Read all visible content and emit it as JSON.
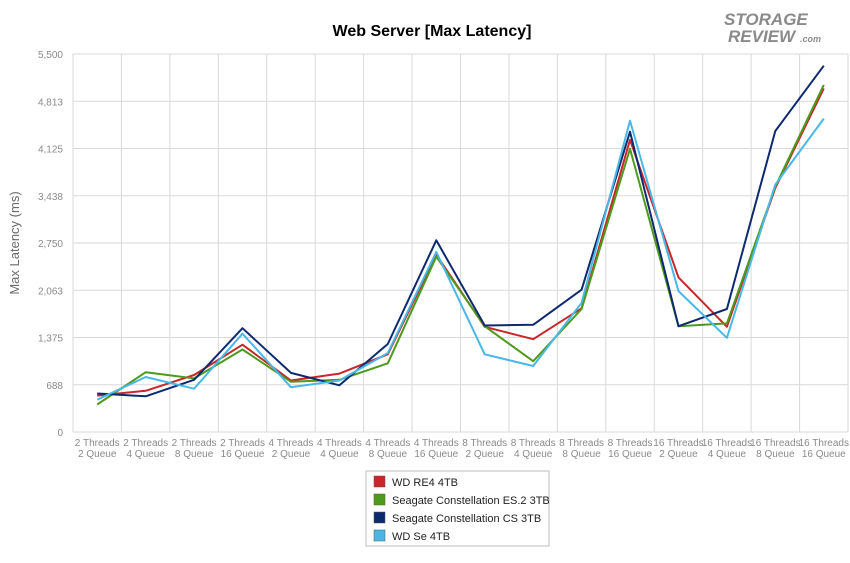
{
  "chart_data": {
    "type": "line",
    "title": "Web Server [Max Latency]",
    "xlabel": "",
    "ylabel": "Max Latency (ms)",
    "ylim": [
      0,
      5500
    ],
    "yticks": [
      "0",
      "688",
      "1,375",
      "2,063",
      "2,750",
      "3,438",
      "4,125",
      "4,813",
      "5,500"
    ],
    "categories": [
      [
        "2 Threads",
        "2 Queue"
      ],
      [
        "2 Threads",
        "4 Queue"
      ],
      [
        "2 Threads",
        "8 Queue"
      ],
      [
        "2 Threads",
        "16 Queue"
      ],
      [
        "4 Threads",
        "2 Queue"
      ],
      [
        "4 Threads",
        "4 Queue"
      ],
      [
        "4 Threads",
        "8 Queue"
      ],
      [
        "4 Threads",
        "16 Queue"
      ],
      [
        "8 Threads",
        "2 Queue"
      ],
      [
        "8 Threads",
        "4 Queue"
      ],
      [
        "8 Threads",
        "8 Queue"
      ],
      [
        "8 Threads",
        "16 Queue"
      ],
      [
        "16 Threads",
        "2 Queue"
      ],
      [
        "16 Threads",
        "4 Queue"
      ],
      [
        "16 Threads",
        "8 Queue"
      ],
      [
        "16 Threads",
        "16 Queue"
      ]
    ],
    "series": [
      {
        "name": "WD RE4 4TB",
        "color": "#c8262b",
        "values": [
          530,
          600,
          830,
          1270,
          750,
          850,
          1130,
          2580,
          1530,
          1350,
          1800,
          4250,
          2250,
          1530,
          3550,
          5000
        ]
      },
      {
        "name": "Seagate Constellation ES.2 3TB",
        "color": "#4e9a1c",
        "values": [
          400,
          870,
          780,
          1200,
          730,
          760,
          1000,
          2550,
          1540,
          1030,
          1790,
          4120,
          1540,
          1580,
          3570,
          5050
        ]
      },
      {
        "name": "Seagate Constellation CS 3TB",
        "color": "#0e2a6e",
        "values": [
          560,
          520,
          760,
          1510,
          860,
          680,
          1280,
          2790,
          1550,
          1560,
          2070,
          4370,
          1540,
          1790,
          4380,
          5330
        ]
      },
      {
        "name": "WD Se 4TB",
        "color": "#49b8e6",
        "values": [
          470,
          800,
          630,
          1430,
          650,
          750,
          1150,
          2620,
          1130,
          960,
          1880,
          4530,
          2050,
          1370,
          3600,
          4560
        ]
      }
    ],
    "grid": true,
    "legend_position": "bottom-center"
  },
  "logo": {
    "line1": "STORAGE",
    "line2": "REVIEW",
    "suffix": ".com"
  }
}
